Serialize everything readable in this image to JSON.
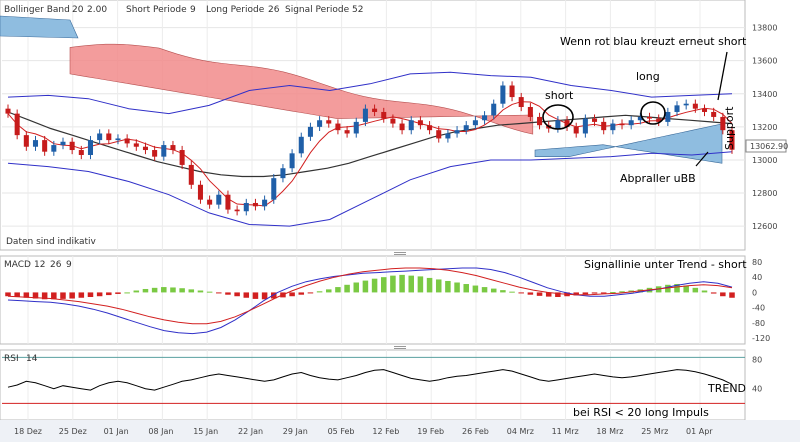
{
  "header": {
    "bollinger_label": "Bollinger Band",
    "bollinger_p1": "20",
    "bollinger_p2": "2.00",
    "short_label": "Short Periode",
    "short_val": "9",
    "long_label": "Long Periode",
    "long_val": "26",
    "signal_label": "Signal Periode",
    "signal_val": "52",
    "note": "Daten sind indikativ",
    "current_price": "13062.90"
  },
  "annotations": {
    "cross_note": "Wenn rot blau kreuzt erneut short",
    "long": "long",
    "short": "short",
    "support": "Support",
    "bounce": "Abpraller uBB",
    "macd_note": "Signallinie unter Trend - short",
    "trend": "TREND",
    "rsi_note": "bei RSI < 20 long Impuls"
  },
  "macd_header": {
    "label": "MACD",
    "p1": "12",
    "p2": "26",
    "p3": "9"
  },
  "rsi_header": {
    "label": "RSI",
    "p1": "14"
  },
  "colors": {
    "up_candle": "#1f5fa8",
    "down_candle": "#c61b1b",
    "cloud_red": "#f28b8b",
    "cloud_blue": "#8fbde0",
    "bollinger": "#3030c8",
    "macd_pos": "#7ac943",
    "macd_neg": "#d22020",
    "rsi_line": "#000000"
  },
  "chart_data": [
    {
      "type": "candlestick",
      "name_axis": "price",
      "x_ticks": [
        "18 Dez",
        "25 Dez",
        "01 Jan",
        "08 Jan",
        "15 Jan",
        "22 Jan",
        "29 Jan",
        "05 Feb",
        "12 Feb",
        "19 Feb",
        "26 Feb",
        "04 Mrz",
        "11 Mrz",
        "18 Mrz",
        "25 Mrz",
        "01 Apr"
      ],
      "y_ticks": [
        12600,
        12800,
        13000,
        13200,
        13400,
        13600,
        13800
      ],
      "ylim": [
        12480,
        13870
      ],
      "close": [
        13280,
        13150,
        13080,
        13120,
        13050,
        13090,
        13110,
        13060,
        13030,
        13120,
        13160,
        13120,
        13130,
        13100,
        13080,
        13060,
        13020,
        13090,
        13060,
        12970,
        12850,
        12760,
        12730,
        12790,
        12700,
        12690,
        12740,
        12720,
        12760,
        12890,
        12950,
        13040,
        13140,
        13200,
        13240,
        13220,
        13180,
        13160,
        13230,
        13310,
        13290,
        13250,
        13220,
        13180,
        13240,
        13210,
        13180,
        13130,
        13160,
        13180,
        13210,
        13240,
        13270,
        13340,
        13450,
        13380,
        13320,
        13260,
        13210,
        13190,
        13240,
        13200,
        13160,
        13250,
        13230,
        13180,
        13220,
        13210,
        13240,
        13260,
        13250,
        13230,
        13290,
        13330,
        13340,
        13310,
        13290,
        13260,
        13180,
        13062
      ],
      "trend_line": [
        13290,
        13240,
        13190,
        13150,
        13110,
        13070,
        13030,
        12990,
        12960,
        12930,
        12910,
        12900,
        12900,
        12910,
        12930,
        12950,
        12980,
        13020,
        13060,
        13100,
        13140,
        13170,
        13190,
        13210,
        13220,
        13230,
        13240,
        13250,
        13260,
        13270,
        13260,
        13250,
        13240,
        13230,
        13220
      ],
      "bollinger_upper": [
        13380,
        13390,
        13370,
        13310,
        13280,
        13330,
        13420,
        13450,
        13420,
        13460,
        13520,
        13530,
        13510,
        13500,
        13450,
        13420,
        13380,
        13390,
        13400
      ],
      "bollinger_lower": [
        12980,
        12960,
        12930,
        12870,
        12790,
        12680,
        12610,
        12600,
        12640,
        12760,
        12880,
        12960,
        13000,
        13000,
        13010,
        13020,
        13040,
        13030,
        13050
      ]
    },
    {
      "type": "bar",
      "name_axis": "macd",
      "y_ticks": [
        80,
        40,
        0,
        -40,
        -80,
        -120
      ],
      "ylim": [
        -130,
        85
      ],
      "histogram": [
        -10,
        -12,
        -14,
        -16,
        -18,
        -18,
        -17,
        -16,
        -14,
        -12,
        -10,
        -7,
        -4,
        0,
        5,
        9,
        12,
        14,
        13,
        11,
        8,
        5,
        2,
        -2,
        -6,
        -10,
        -14,
        -17,
        -18,
        -16,
        -13,
        -10,
        -6,
        -2,
        3,
        8,
        14,
        20,
        26,
        31,
        36,
        40,
        44,
        46,
        44,
        42,
        38,
        34,
        30,
        26,
        22,
        18,
        14,
        10,
        6,
        2,
        -2,
        -6,
        -9,
        -11,
        -12,
        -10,
        -8,
        -5,
        -3,
        -1,
        1,
        3,
        5,
        8,
        12,
        16,
        20,
        22,
        18,
        12,
        5,
        -3,
        -10,
        -14
      ],
      "macd_line": [
        -20,
        -22,
        -24,
        -26,
        -30,
        -36,
        -44,
        -54,
        -66,
        -78,
        -90,
        -100,
        -106,
        -108,
        -104,
        -92,
        -72,
        -48,
        -22,
        0,
        16,
        28,
        36,
        42,
        46,
        50,
        52,
        54,
        56,
        58,
        60,
        62,
        64,
        64,
        60,
        52,
        40,
        26,
        12,
        2,
        -6,
        -10,
        -10,
        -6,
        -2,
        4,
        10,
        18,
        24,
        28,
        24,
        14
      ],
      "signal_line": [
        -10,
        -12,
        -14,
        -16,
        -20,
        -24,
        -30,
        -36,
        -44,
        -54,
        -64,
        -72,
        -78,
        -82,
        -82,
        -76,
        -64,
        -48,
        -30,
        -12,
        4,
        18,
        30,
        40,
        48,
        54,
        58,
        62,
        64,
        64,
        62,
        58,
        52,
        44,
        34,
        24,
        14,
        6,
        0,
        -4,
        -6,
        -6,
        -4,
        -2,
        2,
        6,
        10,
        14,
        18,
        20,
        18,
        12
      ]
    },
    {
      "type": "line",
      "name_axis": "rsi",
      "y_ticks": [
        80,
        40
      ],
      "ylim": [
        0,
        90
      ],
      "values": [
        42,
        45,
        50,
        48,
        44,
        40,
        44,
        42,
        40,
        38,
        44,
        48,
        50,
        48,
        44,
        40,
        38,
        42,
        46,
        50,
        52,
        55,
        58,
        60,
        58,
        56,
        54,
        52,
        50,
        52,
        56,
        60,
        62,
        58,
        55,
        53,
        52,
        55,
        58,
        62,
        65,
        66,
        62,
        58,
        54,
        52,
        50,
        52,
        55,
        57,
        58,
        60,
        62,
        64,
        66,
        64,
        60,
        56,
        52,
        50,
        52,
        54,
        56,
        58,
        60,
        58,
        56,
        55,
        56,
        58,
        60,
        62,
        64,
        66,
        65,
        63,
        60,
        56,
        52,
        46
      ]
    }
  ]
}
